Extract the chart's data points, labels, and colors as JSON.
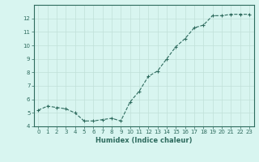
{
  "x": [
    0,
    1,
    2,
    3,
    4,
    5,
    6,
    7,
    8,
    9,
    10,
    11,
    12,
    13,
    14,
    15,
    16,
    17,
    18,
    19,
    20,
    21,
    22,
    23
  ],
  "y": [
    5.2,
    5.5,
    5.4,
    5.3,
    5.0,
    4.4,
    4.4,
    4.5,
    4.6,
    4.4,
    5.8,
    6.6,
    7.7,
    8.1,
    9.0,
    9.9,
    10.5,
    11.3,
    11.5,
    12.2,
    12.2,
    12.3,
    12.3,
    12.3
  ],
  "xlabel": "Humidex (Indice chaleur)",
  "ylim": [
    4,
    13
  ],
  "xlim": [
    -0.5,
    23.5
  ],
  "yticks": [
    4,
    5,
    6,
    7,
    8,
    9,
    10,
    11,
    12
  ],
  "xticks": [
    0,
    1,
    2,
    3,
    4,
    5,
    6,
    7,
    8,
    9,
    10,
    11,
    12,
    13,
    14,
    15,
    16,
    17,
    18,
    19,
    20,
    21,
    22,
    23
  ],
  "line_color": "#2e6b5e",
  "marker": "+",
  "bg_color": "#d8f5f0",
  "grid_color": "#c0e0d8",
  "axis_color": "#2e6b5e",
  "tick_color": "#2e6b5e",
  "label_color": "#2e6b5e",
  "tick_fontsize": 5.0,
  "xlabel_fontsize": 6.0,
  "linewidth": 0.8,
  "markersize": 3.5,
  "markeredgewidth": 0.8
}
